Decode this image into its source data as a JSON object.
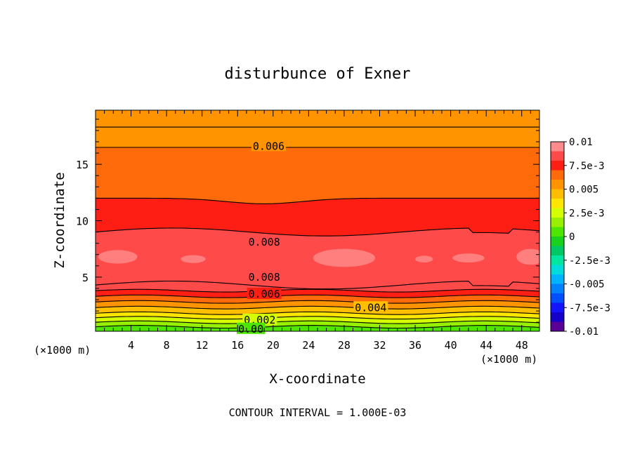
{
  "chart_data": {
    "type": "heatmap",
    "subtype": "filled-contour",
    "title": "disturbunce of Exner",
    "xlabel": "X-coordinate",
    "ylabel": "Z-coordinate",
    "x_unit_left": "(×1000 m)",
    "x_unit_right": "(×1000 m)",
    "footer": "CONTOUR INTERVAL = 1.000E-03",
    "xlim": [
      0,
      50
    ],
    "ylim": [
      0.2,
      19.8
    ],
    "xticks": [
      4,
      8,
      12,
      16,
      20,
      24,
      28,
      32,
      36,
      40,
      44,
      48
    ],
    "yticks": [
      5,
      10,
      15
    ],
    "contour_interval": 0.001,
    "colorbar": {
      "range": [
        -0.01,
        0.01
      ],
      "tick_labels": [
        "0.01",
        "7.5e-3",
        "0.005",
        "2.5e-3",
        "0",
        "-2.5e-3",
        "-0.005",
        "-7.5e-3",
        "-0.01"
      ],
      "colors": [
        "#ff8c8c",
        "#ff4a4a",
        "#ff1e14",
        "#ff6a0a",
        "#ff9400",
        "#ffbe00",
        "#ffe600",
        "#d4ff00",
        "#96f000",
        "#4ee600",
        "#18d21e",
        "#00c864",
        "#00e6a0",
        "#00dcdc",
        "#00b4ff",
        "#0082ff",
        "#0050ff",
        "#1414ff",
        "#1400c8",
        "#5a0096"
      ]
    },
    "value_bands": [
      {
        "z_top": 0.6,
        "value": 0.0003
      },
      {
        "z_top": 1.0,
        "value": 0.0012
      },
      {
        "z_top": 1.4,
        "value": 0.0022
      },
      {
        "z_top": 1.8,
        "value": 0.0032
      },
      {
        "z_top": 2.3,
        "value": 0.0042
      },
      {
        "z_top": 2.8,
        "value": 0.0052
      },
      {
        "z_top": 3.3,
        "value": 0.0062
      },
      {
        "z_top": 3.8,
        "value": 0.0072
      },
      {
        "z_top": 4.3,
        "value": 0.0082
      },
      {
        "z_top": 9.0,
        "value": 0.0087
      },
      {
        "z_top": 12.0,
        "value": 0.0078
      },
      {
        "z_top": 16.5,
        "value": 0.0068
      },
      {
        "z_top": 18.3,
        "value": 0.0058
      },
      {
        "z_top": 19.8,
        "value": 0.0052
      }
    ],
    "contour_labels": [
      "0.006",
      "0.008",
      "0.008",
      "0.006",
      "0.004",
      "0.002",
      "0.00"
    ]
  }
}
